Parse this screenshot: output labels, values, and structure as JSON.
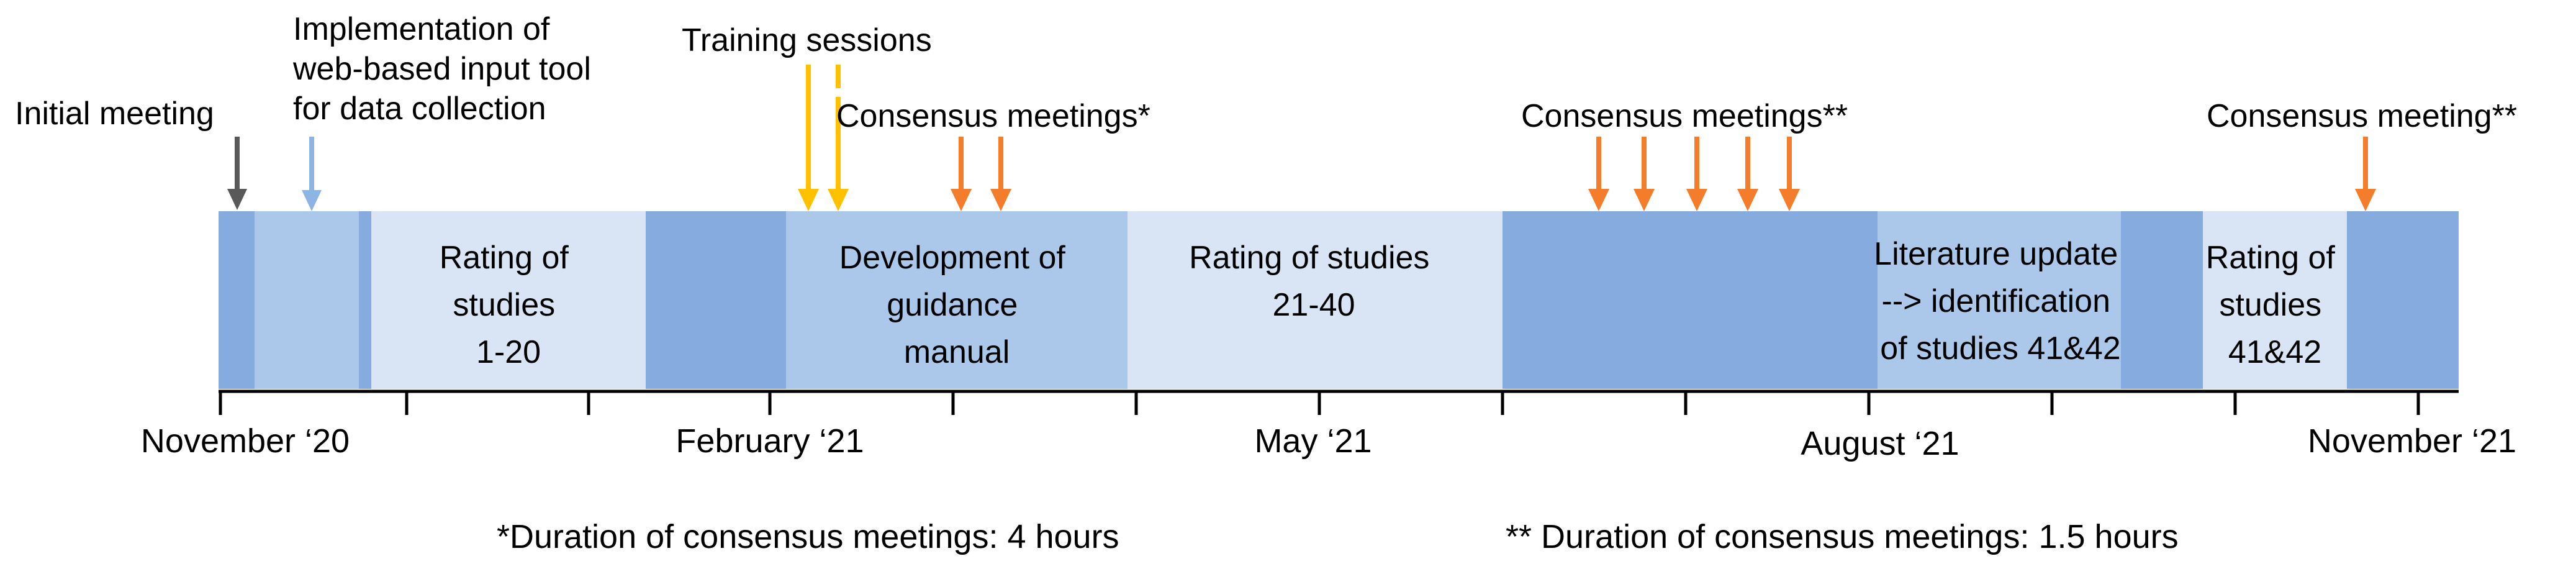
{
  "colors": {
    "dark_blue": "#85abdf",
    "mid_blue": "#abc7e9",
    "light_blue": "#d9e4f4",
    "orange": "#f47d2c",
    "yellow": "#ffc000",
    "gray": "#595959",
    "light_blue_arrow": "#8db4e2"
  },
  "events": {
    "initial_meeting": "Initial meeting",
    "implementation": [
      "Implementation of",
      "web-based input tool",
      "for data collection"
    ],
    "training_sessions": "Training sessions",
    "consensus_1": "Consensus meetings*",
    "consensus_2": "Consensus meetings**",
    "consensus_3": "Consensus meeting**"
  },
  "phases": {
    "rating_1_20": [
      "Rating of",
      "studies",
      "1-20"
    ],
    "guidance_manual": [
      "Development of",
      "guidance",
      "manual"
    ],
    "rating_21_40": [
      "Rating of studies",
      "21-40"
    ],
    "literature_update": [
      "Literature update",
      "--> identification",
      "of studies 41&42"
    ],
    "rating_41_42": [
      "Rating of",
      "studies",
      "41&42"
    ]
  },
  "axis": {
    "labels": [
      "November ‘20",
      "February ‘21",
      "May ‘21",
      "August ‘21",
      "November ‘21"
    ]
  },
  "footnotes": {
    "single_star": "*Duration of consensus meetings: 4 hours",
    "double_star": "** Duration of consensus meetings: 1.5 hours"
  }
}
